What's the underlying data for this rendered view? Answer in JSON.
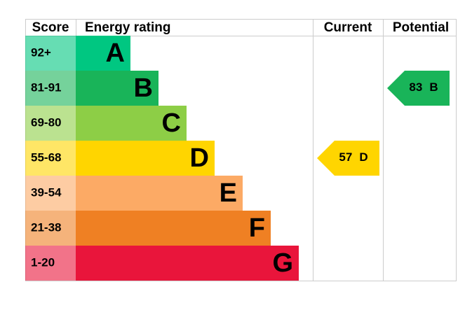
{
  "header": {
    "score": "Score",
    "energy_rating": "Energy rating",
    "current": "Current",
    "potential": "Potential"
  },
  "bands": [
    {
      "score": "92+",
      "rating": "A",
      "color": "#00c781"
    },
    {
      "score": "81-91",
      "rating": "B",
      "color": "#19b459"
    },
    {
      "score": "69-80",
      "rating": "C",
      "color": "#8dce46"
    },
    {
      "score": "55-68",
      "rating": "D",
      "color": "#ffd500"
    },
    {
      "score": "39-54",
      "rating": "E",
      "color": "#fcaa65"
    },
    {
      "score": "21-38",
      "rating": "F",
      "color": "#ef8023"
    },
    {
      "score": "1-20",
      "rating": "G",
      "color": "#e9153b"
    }
  ],
  "current": {
    "score": 57,
    "rating": "D"
  },
  "potential": {
    "score": 83,
    "rating": "B"
  }
}
